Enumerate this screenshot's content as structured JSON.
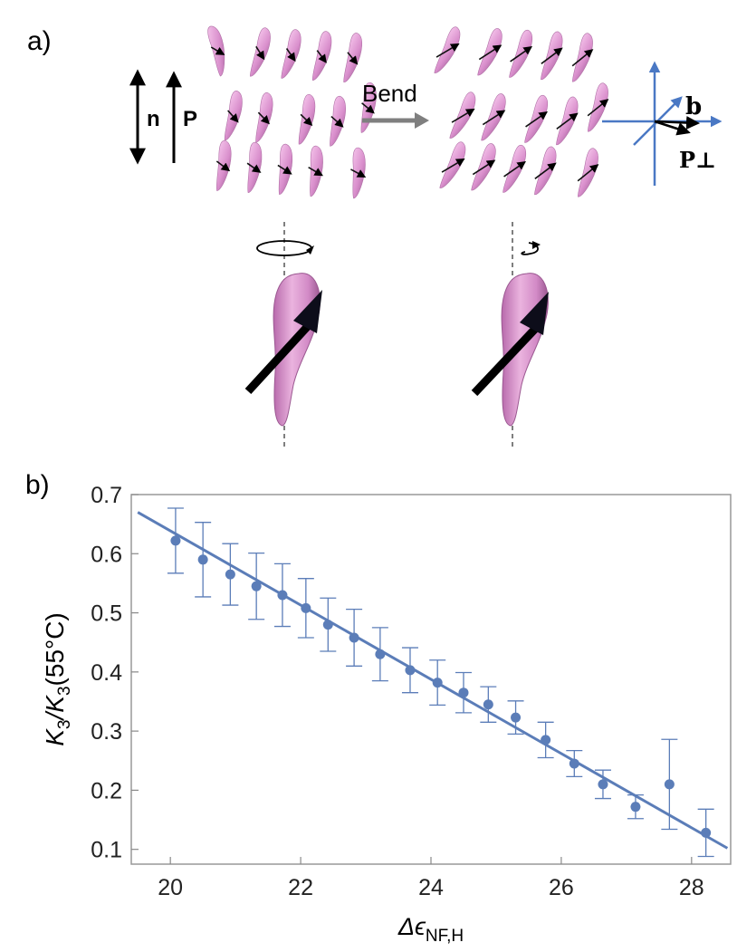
{
  "panel_a": {
    "label": "a)",
    "n_label": "n",
    "p_label": "P",
    "bend_label": "Bend",
    "b_label": "b",
    "p_perp_label": "P⊥"
  },
  "panel_b": {
    "label": "b)"
  },
  "colors": {
    "molecule": "#d98fcc",
    "axis_blue": "#4a78c4",
    "series": "#5b7db8",
    "arrow_gray": "#7f7f7f"
  },
  "chart_data": {
    "type": "scatter",
    "xlabel": "Δϵ",
    "xlabel_sub": "NF,H",
    "ylabel_main": "K",
    "ylabel_sub": "3",
    "ylabel_mid": "/K",
    "ylabel_sub2": "3",
    "ylabel_tail": "(55°C)",
    "xlim": [
      19.4,
      28.6
    ],
    "ylim": [
      0.075,
      0.7
    ],
    "xticks": [
      20,
      22,
      24,
      26,
      28
    ],
    "yticks": [
      0.1,
      0.2,
      0.3,
      0.4,
      0.5,
      0.6,
      0.7
    ],
    "points": [
      {
        "x": 20.08,
        "y": 0.622,
        "err": 0.055
      },
      {
        "x": 20.5,
        "y": 0.59,
        "err": 0.063
      },
      {
        "x": 20.92,
        "y": 0.565,
        "err": 0.052
      },
      {
        "x": 21.32,
        "y": 0.545,
        "err": 0.056
      },
      {
        "x": 21.72,
        "y": 0.53,
        "err": 0.053
      },
      {
        "x": 22.08,
        "y": 0.508,
        "err": 0.05
      },
      {
        "x": 22.42,
        "y": 0.48,
        "err": 0.045
      },
      {
        "x": 22.82,
        "y": 0.458,
        "err": 0.048
      },
      {
        "x": 23.22,
        "y": 0.43,
        "err": 0.045
      },
      {
        "x": 23.68,
        "y": 0.403,
        "err": 0.038
      },
      {
        "x": 24.1,
        "y": 0.382,
        "err": 0.038
      },
      {
        "x": 24.5,
        "y": 0.365,
        "err": 0.034
      },
      {
        "x": 24.88,
        "y": 0.345,
        "err": 0.03
      },
      {
        "x": 25.3,
        "y": 0.323,
        "err": 0.028
      },
      {
        "x": 25.76,
        "y": 0.285,
        "err": 0.03
      },
      {
        "x": 26.2,
        "y": 0.245,
        "err": 0.022
      },
      {
        "x": 26.64,
        "y": 0.21,
        "err": 0.024
      },
      {
        "x": 27.14,
        "y": 0.172,
        "err": 0.02
      },
      {
        "x": 27.66,
        "y": 0.21,
        "err": 0.076
      },
      {
        "x": 28.22,
        "y": 0.128,
        "err": 0.04
      }
    ],
    "fit_line": {
      "x": [
        19.5,
        28.55
      ],
      "y": [
        0.67,
        0.102
      ]
    }
  }
}
